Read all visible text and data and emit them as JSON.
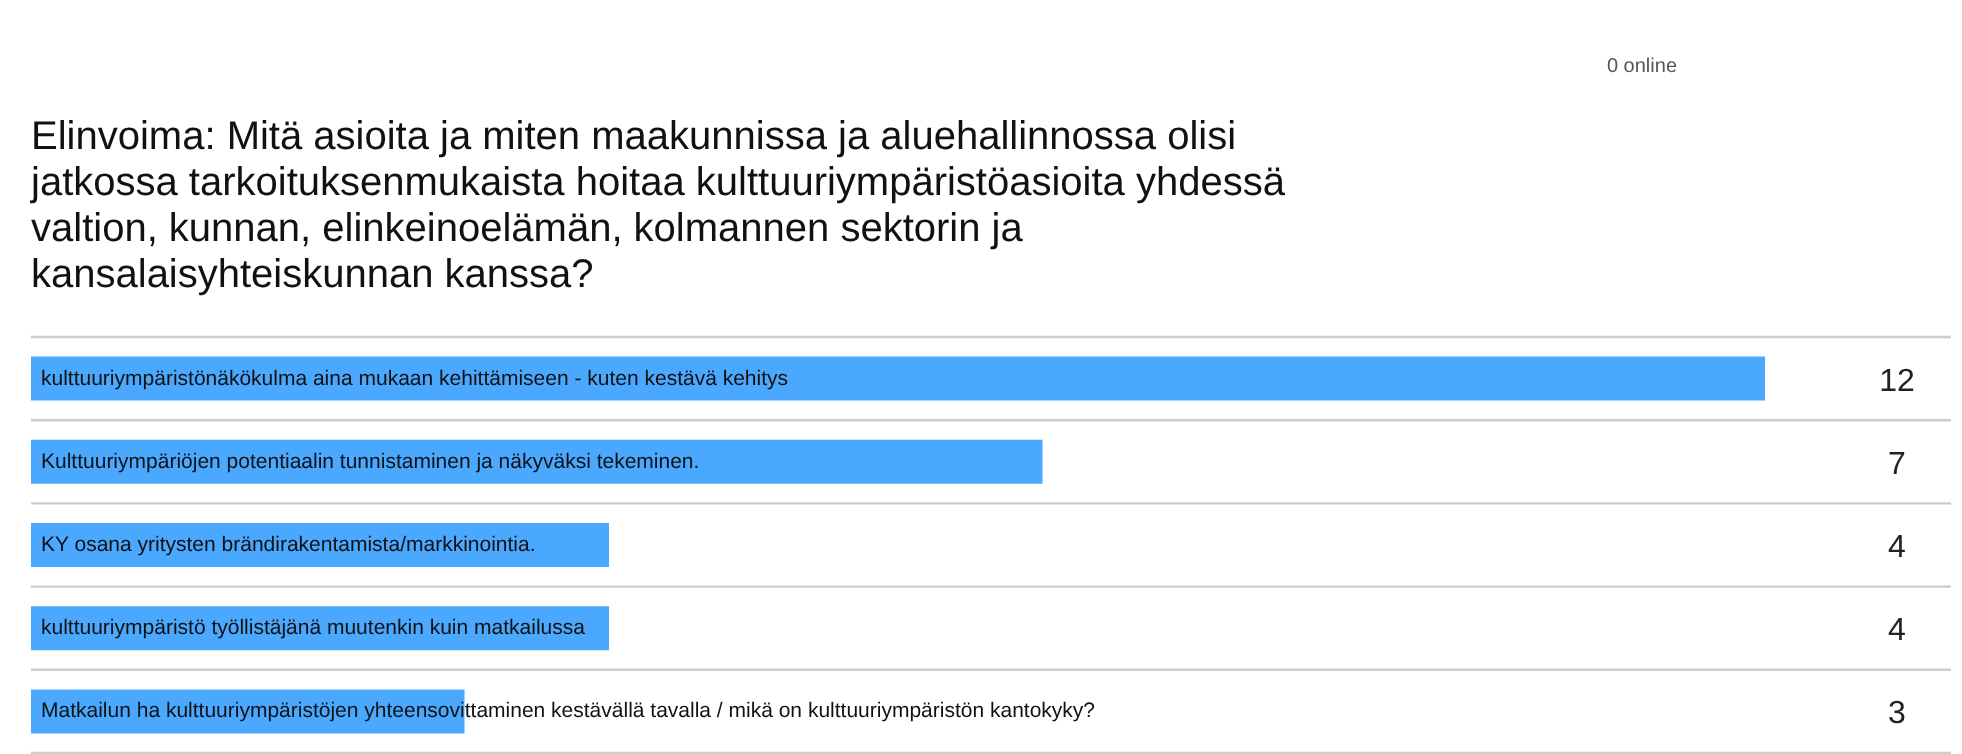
{
  "chart_data": {
    "type": "bar",
    "orientation": "horizontal",
    "title": "Elinvoima: Mitä asioita ja miten maakunnissa ja aluehallinnossa olisi jatkossa tarkoituksenmukaista hoitaa kulttuuriympäristöasioita yhdessä valtion, kunnan, elinkeinoelämän, kolmannen sektorin ja kansalaisyhteiskunnan kanssa?",
    "categories": [
      "kulttuuriympäristönäkökulma aina mukaan kehittämiseen - kuten kestävä kehitys",
      "Kulttuuriympäriöjen potentiaalin tunnistaminen ja näkyväksi tekeminen.",
      "KY osana yritysten brändirakentamista/markkinointia.",
      "kulttuuriympäristö työllistäjänä muutenkin kuin matkailussa",
      "Matkailun ha kulttuuriympäristöjen yhteensovittaminen kestävällä tavalla / mikä on kulttuuriympäristön kantokyky?"
    ],
    "values": [
      12,
      7,
      4,
      4,
      3
    ],
    "color": "#4aa8ff",
    "data_labels": true,
    "annotations": [
      "0 online"
    ]
  }
}
